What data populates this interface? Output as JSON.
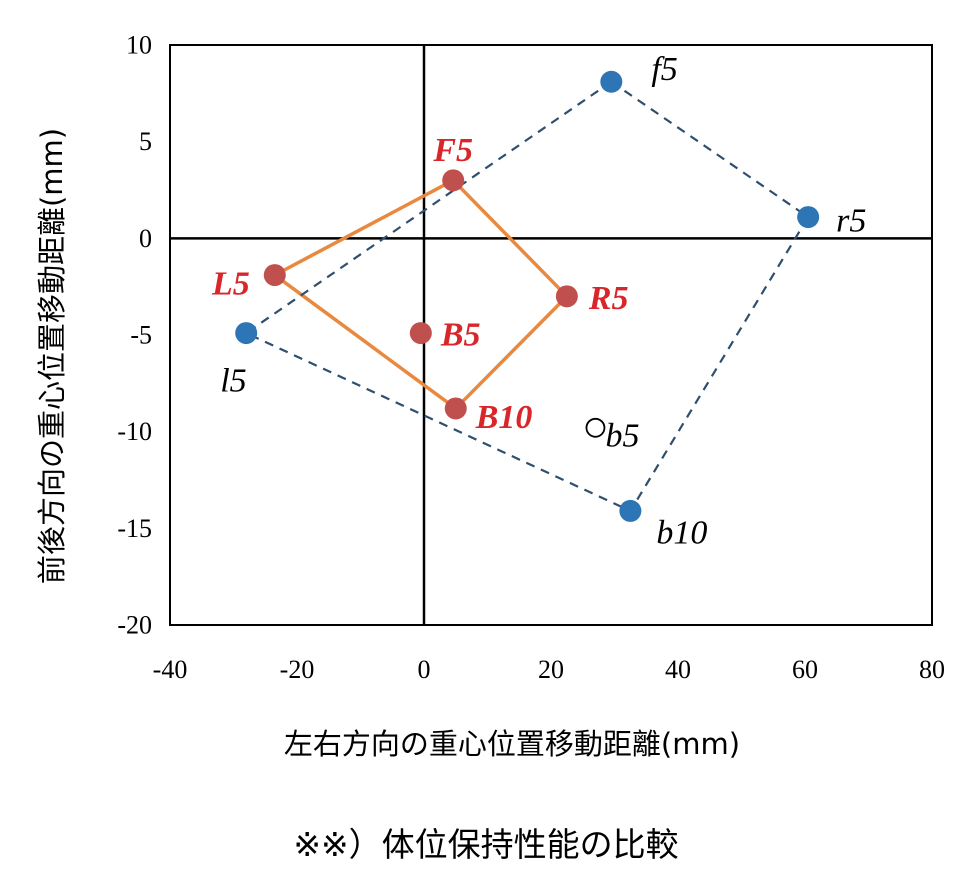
{
  "chart_data": {
    "type": "scatter",
    "xlabel": "左右方向の重心位置移動距離(mm)",
    "ylabel": "前後方向の重心位置移動距離(mm)",
    "xlim": [
      -40,
      80
    ],
    "ylim": [
      -20,
      10
    ],
    "xticks": [
      -40,
      -20,
      0,
      20,
      40,
      60,
      80
    ],
    "yticks": [
      10,
      5,
      0,
      -5,
      -10,
      -15,
      -20
    ],
    "grid": false,
    "points": [
      {
        "label": "F5",
        "x": 4.6,
        "y": 3.0,
        "group": "red"
      },
      {
        "label": "L5",
        "x": -23.5,
        "y": -1.9,
        "group": "red"
      },
      {
        "label": "R5",
        "x": 22.5,
        "y": -3.0,
        "group": "red"
      },
      {
        "label": "B5",
        "x": -0.5,
        "y": -4.9,
        "group": "red"
      },
      {
        "label": "B10",
        "x": 5.0,
        "y": -8.8,
        "group": "red"
      },
      {
        "label": "f5",
        "x": 29.5,
        "y": 8.1,
        "group": "blue"
      },
      {
        "label": "r5",
        "x": 60.5,
        "y": 1.1,
        "group": "blue"
      },
      {
        "label": "l5",
        "x": -28.0,
        "y": -4.9,
        "group": "blue"
      },
      {
        "label": "b10",
        "x": 32.5,
        "y": -14.1,
        "group": "blue"
      },
      {
        "label": "b5",
        "x": 27.0,
        "y": -9.8,
        "group": "open"
      }
    ],
    "polygons": [
      {
        "group": "red",
        "style": "solid",
        "color": "#e8893f",
        "order": [
          "F5",
          "R5",
          "B10",
          "L5"
        ]
      },
      {
        "group": "blue",
        "style": "dashed",
        "color": "#2e4f6e",
        "order": [
          "f5",
          "r5",
          "b10",
          "l5"
        ]
      }
    ],
    "colors": {
      "red": "#c0504d",
      "blue": "#2e75b6",
      "red_label": "#d9262b"
    }
  },
  "caption": "※※）体位保持性能の比較"
}
